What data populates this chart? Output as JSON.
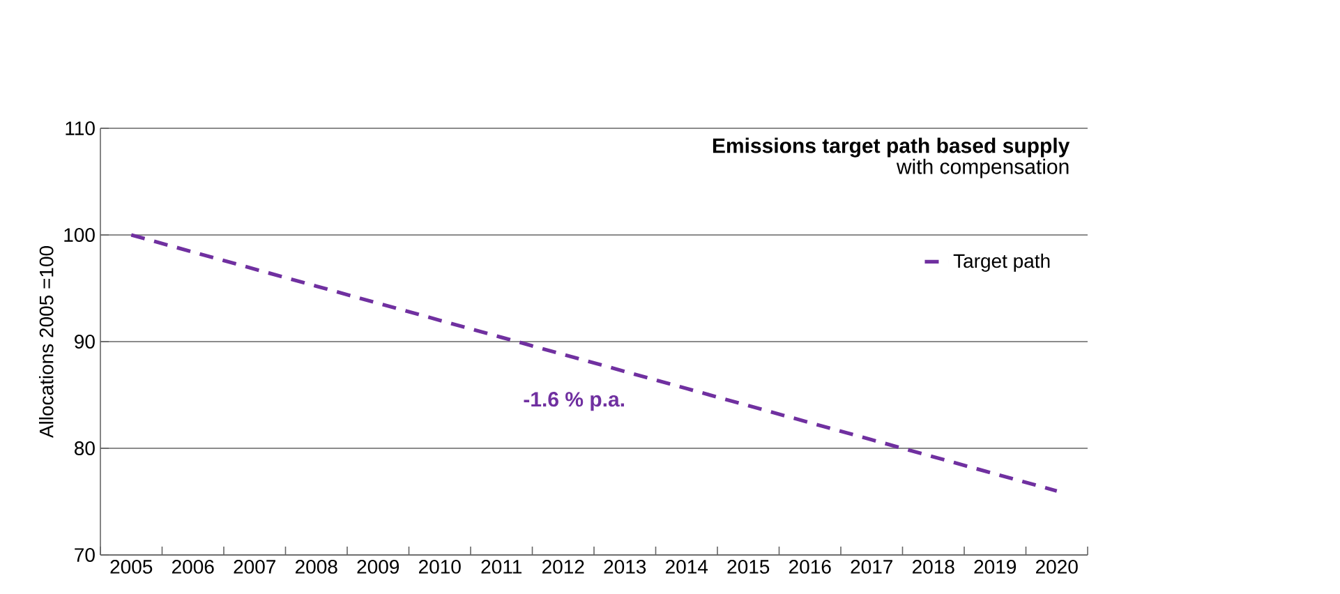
{
  "chart_data": {
    "type": "line",
    "title": "Emissions target path based supply",
    "subtitle": "with compensation",
    "ylabel": "Allocations 2005 =100",
    "categories": [
      "2005",
      "2006",
      "2007",
      "2008",
      "2009",
      "2010",
      "2011",
      "2012",
      "2013",
      "2014",
      "2015",
      "2016",
      "2017",
      "2018",
      "2019",
      "2020"
    ],
    "series": [
      {
        "name": "Target path",
        "color": "#7030a0",
        "values": [
          100,
          98.4,
          96.8,
          95.2,
          93.6,
          92,
          90.4,
          88.8,
          87.2,
          85.6,
          84,
          82.4,
          80.8,
          79.2,
          77.6,
          76
        ]
      }
    ],
    "ylim": [
      70,
      110
    ],
    "yticks": [
      70,
      80,
      90,
      100,
      110
    ],
    "grid": "y",
    "legend": "top right",
    "line_style": "dashed",
    "marker": "none",
    "annotations": [
      "-1.6 % p.a."
    ]
  }
}
